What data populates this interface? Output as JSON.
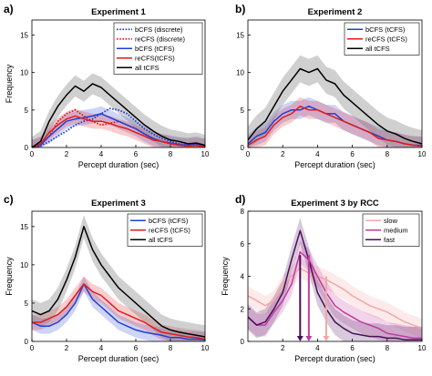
{
  "chart_data": [
    {
      "type": "line",
      "panel_label": "a)",
      "title": "Experiment 1",
      "xlabel": "Percept duration (sec)",
      "ylabel": "Frequency",
      "xlim": [
        0,
        10
      ],
      "ylim": [
        0,
        17
      ],
      "xticks": [
        0,
        2,
        4,
        6,
        8,
        10
      ],
      "yticks": [
        0,
        5,
        10,
        15
      ],
      "legend_position": "top-right",
      "x": [
        0,
        0.5,
        1,
        1.5,
        2,
        2.5,
        3,
        3.5,
        4,
        4.5,
        5,
        5.5,
        6,
        6.5,
        7,
        7.5,
        8,
        8.5,
        9,
        9.5,
        10
      ],
      "series": [
        {
          "name": "bCFS (discrete)",
          "color": "#1f3fd6",
          "dash": "dotted",
          "values": [
            0,
            0.2,
            0.8,
            1.5,
            2.2,
            3.0,
            3.5,
            3.8,
            4.5,
            5.2,
            5.0,
            4.5,
            3.5,
            2.5,
            1.8,
            1.2,
            0.8,
            0.5,
            0.3,
            0.4,
            0.2
          ]
        },
        {
          "name": "reCFS (discrete)",
          "color": "#e31a1c",
          "dash": "dotted",
          "values": [
            0,
            0.5,
            1.5,
            3.5,
            4.5,
            5.0,
            4.2,
            3.5,
            3.0,
            3.2,
            3.5,
            3.0,
            2.5,
            1.8,
            1.2,
            0.8,
            0.5,
            0.3,
            0.2,
            0.2,
            0.1
          ]
        },
        {
          "name": "bCFS (tCFS)",
          "color": "#1f3fd6",
          "dash": "solid",
          "band": 1.0,
          "values": [
            0,
            0.3,
            1.5,
            2.5,
            3.5,
            3.8,
            4.0,
            4.2,
            4.5,
            4.0,
            3.5,
            3.0,
            2.5,
            1.8,
            1.2,
            0.8,
            0.6,
            0.4,
            0.3,
            0.5,
            0.2
          ]
        },
        {
          "name": "reCFS(tCFS)",
          "color": "#e31a1c",
          "dash": "solid",
          "band": 1.0,
          "values": [
            0,
            0.5,
            2.0,
            3.0,
            3.8,
            4.2,
            3.8,
            3.5,
            3.5,
            3.2,
            2.8,
            2.5,
            2.0,
            1.5,
            1.0,
            0.8,
            0.5,
            0.3,
            0.2,
            0.3,
            0.1
          ]
        },
        {
          "name": "all tCFS",
          "color": "#000000",
          "dash": "solid",
          "band": 1.4,
          "values": [
            0,
            0.8,
            3.5,
            5.5,
            7.0,
            8.2,
            7.5,
            8.5,
            8.0,
            7.0,
            6.0,
            5.0,
            4.0,
            3.0,
            2.2,
            1.5,
            1.0,
            0.8,
            0.5,
            0.6,
            0.3
          ]
        }
      ]
    },
    {
      "type": "line",
      "panel_label": "b)",
      "title": "Experiment 2",
      "xlabel": "Percept duration (sec)",
      "ylabel": "",
      "xlim": [
        0,
        10
      ],
      "ylim": [
        0,
        17
      ],
      "xticks": [
        0,
        2,
        4,
        6,
        8,
        10
      ],
      "yticks": [
        0,
        5,
        10,
        15
      ],
      "legend_position": "top-right",
      "x": [
        0,
        0.5,
        1,
        1.5,
        2,
        2.5,
        3,
        3.5,
        4,
        4.5,
        5,
        5.5,
        6,
        6.5,
        7,
        7.5,
        8,
        8.5,
        9,
        9.5,
        10
      ],
      "series": [
        {
          "name": "bCFS (tCFS)",
          "color": "#1f3fd6",
          "dash": "solid",
          "band": 1.2,
          "values": [
            0.5,
            1.5,
            2.0,
            3.5,
            4.5,
            5.0,
            5.0,
            5.5,
            5.0,
            4.5,
            4.5,
            3.5,
            3.0,
            2.5,
            2.0,
            1.5,
            1.0,
            0.8,
            0.5,
            0.3,
            0.3
          ]
        },
        {
          "name": "reCFS (tCFS)",
          "color": "#e31a1c",
          "dash": "solid",
          "band": 1.2,
          "values": [
            0.3,
            1.0,
            1.5,
            3.0,
            4.0,
            4.5,
            5.5,
            5.0,
            5.0,
            4.5,
            4.0,
            3.5,
            3.0,
            2.5,
            2.0,
            1.2,
            1.0,
            0.8,
            0.5,
            0.3,
            0.2
          ]
        },
        {
          "name": "all tCFS",
          "color": "#000000",
          "dash": "solid",
          "band": 1.8,
          "values": [
            1.0,
            2.5,
            3.5,
            5.5,
            7.5,
            9.0,
            10.5,
            10.0,
            10.5,
            9.0,
            8.5,
            7.0,
            6.0,
            5.0,
            4.0,
            3.0,
            2.2,
            1.8,
            1.2,
            0.8,
            0.5
          ]
        }
      ]
    },
    {
      "type": "line",
      "panel_label": "c)",
      "title": "Experiment 3",
      "xlabel": "Percept duration (sec)",
      "ylabel": "Frequency",
      "xlim": [
        0,
        10
      ],
      "ylim": [
        0,
        17
      ],
      "xticks": [
        0,
        2,
        4,
        6,
        8,
        10
      ],
      "yticks": [
        0,
        5,
        10,
        15
      ],
      "legend_position": "top-right",
      "x": [
        0,
        0.5,
        1,
        1.5,
        2,
        2.5,
        3,
        3.5,
        4,
        4.5,
        5,
        5.5,
        6,
        6.5,
        7,
        7.5,
        8,
        8.5,
        9,
        9.5,
        10
      ],
      "series": [
        {
          "name": "bCFS (tCFS)",
          "color": "#1f3fd6",
          "dash": "solid",
          "band": 1.0,
          "values": [
            2.5,
            2.0,
            2.0,
            2.5,
            3.5,
            5.0,
            7.5,
            5.5,
            4.5,
            3.5,
            2.5,
            2.0,
            1.5,
            1.2,
            1.0,
            0.8,
            0.5,
            0.5,
            0.3,
            0.3,
            0.2
          ]
        },
        {
          "name": "reCFS (tCFS)",
          "color": "#e31a1c",
          "dash": "solid",
          "band": 1.0,
          "values": [
            2.5,
            2.5,
            3.0,
            3.5,
            4.5,
            6.0,
            7.5,
            6.5,
            6.0,
            5.0,
            4.0,
            3.5,
            3.0,
            2.5,
            1.8,
            1.2,
            1.0,
            0.8,
            0.6,
            0.5,
            0.3
          ]
        },
        {
          "name": "all tCFS",
          "color": "#000000",
          "dash": "solid",
          "band": 1.5,
          "values": [
            4.0,
            3.5,
            4.0,
            5.5,
            8.0,
            11.0,
            15.0,
            12.0,
            10.0,
            8.5,
            7.0,
            6.0,
            5.0,
            4.0,
            3.0,
            2.0,
            1.5,
            1.2,
            1.0,
            0.8,
            0.6
          ]
        }
      ]
    },
    {
      "type": "line",
      "panel_label": "d)",
      "title": "Experiment 3 by RCC",
      "xlabel": "Percept duration (sec)",
      "ylabel": "Frequency",
      "xlim": [
        0,
        10
      ],
      "ylim": [
        0,
        8
      ],
      "xticks": [
        2,
        4,
        6,
        8,
        10
      ],
      "yticks": [
        0,
        2,
        4,
        6,
        8
      ],
      "legend_position": "top-right",
      "x": [
        0,
        0.5,
        1,
        1.5,
        2,
        2.5,
        3,
        3.5,
        4,
        4.5,
        5,
        5.5,
        6,
        6.5,
        7,
        7.5,
        8,
        8.5,
        9,
        9.5,
        10
      ],
      "series": [
        {
          "name": "slow",
          "color": "#f4a6a6",
          "dash": "solid",
          "band": 0.6,
          "values": [
            2.8,
            2.5,
            2.2,
            2.5,
            3.5,
            4.0,
            4.5,
            4.2,
            4.0,
            3.8,
            3.5,
            3.2,
            2.8,
            2.5,
            2.2,
            2.0,
            1.8,
            1.5,
            1.2,
            1.0,
            0.8
          ]
        },
        {
          "name": "medium",
          "color": "#c03aa0",
          "dash": "solid",
          "band": 0.7,
          "values": [
            1.5,
            1.0,
            1.0,
            1.8,
            2.5,
            3.5,
            5.5,
            5.0,
            4.0,
            3.0,
            2.2,
            1.8,
            1.5,
            1.2,
            1.0,
            0.8,
            0.5,
            0.4,
            0.3,
            0.2,
            0.2
          ]
        },
        {
          "name": "fast",
          "color": "#4a0f5a",
          "dash": "solid",
          "band": 0.8,
          "values": [
            1.5,
            1.0,
            1.2,
            2.0,
            3.0,
            5.0,
            6.8,
            5.0,
            3.0,
            2.0,
            1.2,
            0.8,
            0.5,
            0.4,
            0.3,
            0.3,
            0.2,
            0.2,
            0.1,
            0.1,
            0.1
          ]
        }
      ],
      "arrows": [
        {
          "series": "fast",
          "x": 3.0,
          "y_top": 5.3
        },
        {
          "series": "medium",
          "x": 3.5,
          "y_top": 5.3
        },
        {
          "series": "slow",
          "x": 4.5,
          "y_top": 4.0
        }
      ]
    }
  ]
}
